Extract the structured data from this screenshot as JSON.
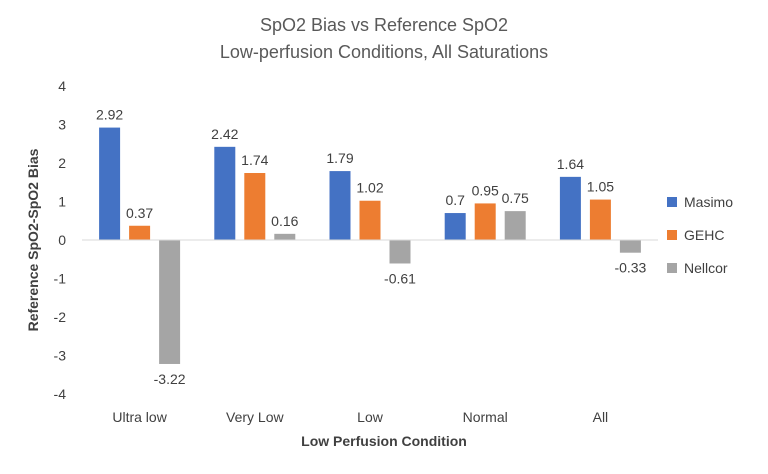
{
  "chart_data": {
    "type": "bar",
    "title": "SpO2 Bias vs Reference SpO2",
    "subtitle": "Low-perfusion Conditions, All Saturations",
    "xlabel": "Low Perfusion Condition",
    "ylabel": "Reference SpO2-SpO2 Bias",
    "categories": [
      "Ultra low",
      "Very Low",
      "Low",
      "Normal",
      "All"
    ],
    "ylim": [
      -4,
      4
    ],
    "yticks": [
      4,
      3,
      2,
      1,
      0,
      -1,
      -2,
      -3,
      -4
    ],
    "grid": false,
    "legend_position": "right",
    "series": [
      {
        "name": "Masimo",
        "color": "#4472C4",
        "values": [
          2.92,
          2.42,
          1.79,
          0.7,
          1.64
        ]
      },
      {
        "name": "GEHC",
        "color": "#ED7D31",
        "values": [
          0.37,
          1.74,
          1.02,
          0.95,
          1.05
        ]
      },
      {
        "name": "Nellcor",
        "color": "#A5A5A5",
        "values": [
          -3.22,
          0.16,
          -0.61,
          0.75,
          -0.33
        ]
      }
    ]
  }
}
